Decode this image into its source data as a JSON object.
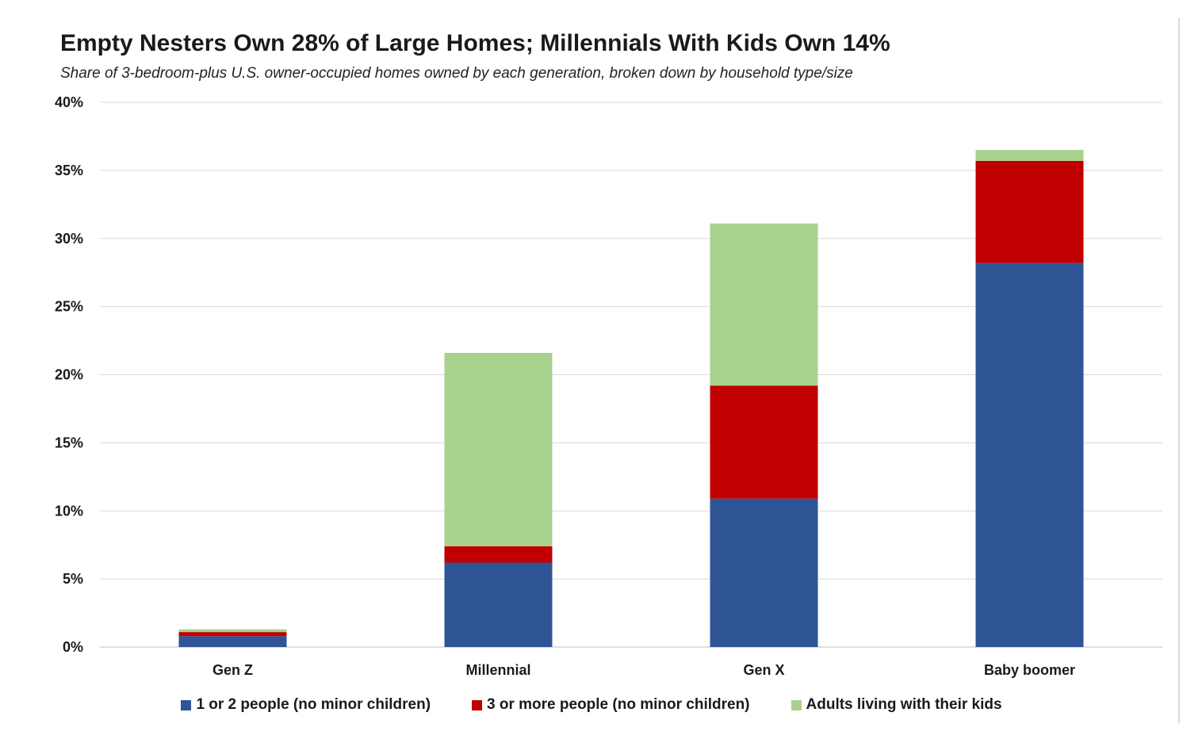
{
  "chart_data": {
    "type": "bar",
    "stacked": true,
    "title": "Empty Nesters Own 28% of Large Homes; Millennials With Kids Own 14%",
    "subtitle": "Share of 3-bedroom-plus U.S. owner-occupied homes owned by each generation, broken down by household type/size",
    "xlabel": "",
    "ylabel": "",
    "ylim": [
      0,
      40
    ],
    "yticks": [
      0,
      5,
      10,
      15,
      20,
      25,
      30,
      35,
      40
    ],
    "ytick_labels": [
      "0%",
      "5%",
      "10%",
      "15%",
      "20%",
      "25%",
      "30%",
      "35%",
      "40%"
    ],
    "grid": true,
    "legend_position": "bottom",
    "categories": [
      "Gen Z",
      "Millennial",
      "Gen X",
      "Baby boomer"
    ],
    "series": [
      {
        "name": "1 or 2 people (no minor children)",
        "color": "#2F5597",
        "values": [
          0.8,
          6.2,
          10.9,
          28.2
        ]
      },
      {
        "name": "3 or more people (no minor children)",
        "color": "#C00000",
        "values": [
          0.3,
          1.2,
          8.3,
          7.5
        ]
      },
      {
        "name": "Adults living with their kids",
        "color": "#A9D18E",
        "values": [
          0.2,
          14.2,
          11.9,
          0.8
        ]
      }
    ]
  }
}
